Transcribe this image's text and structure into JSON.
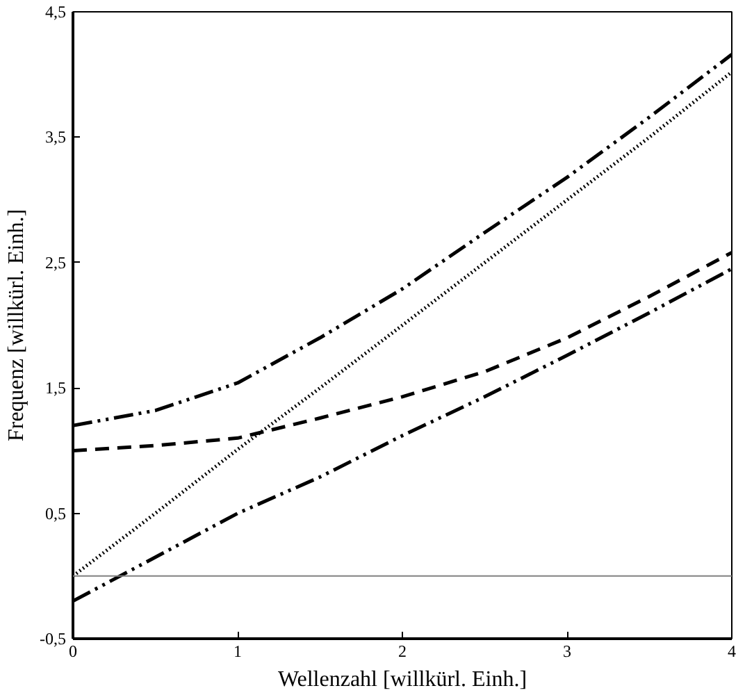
{
  "chart_data": {
    "type": "line",
    "xlabel": "Wellenzahl [willkürl. Einh.]",
    "ylabel": "Frequenz [willkürl. Einh.]",
    "x": [
      0,
      0.5,
      1,
      1.5,
      2,
      2.5,
      3,
      3.5,
      4
    ],
    "series": [
      {
        "color": "#000000",
        "line_style": "dashdot",
        "values": [
          1.2,
          1.32,
          1.54,
          1.9,
          2.29,
          2.74,
          3.18,
          3.66,
          4.16
        ]
      },
      {
        "color": "#000000",
        "line_style": "dotted",
        "values": [
          0,
          0.5,
          1.01,
          1.5,
          2,
          2.5,
          3,
          3.5,
          4.02
        ]
      },
      {
        "color": "#000000",
        "line_style": "dashed",
        "values": [
          1.0,
          1.04,
          1.1,
          1.26,
          1.43,
          1.63,
          1.9,
          2.23,
          2.58
        ]
      },
      {
        "color": "#000000",
        "line_style": "dashdot",
        "values": [
          -0.2,
          0.15,
          0.5,
          0.79,
          1.12,
          1.43,
          1.76,
          2.1,
          2.45
        ]
      }
    ],
    "xlim": [
      0,
      4
    ],
    "ylim": [
      -0.5,
      4.5
    ],
    "xticks": [
      0,
      1,
      2,
      3,
      4
    ],
    "yticks": [
      {
        "value": -0.5,
        "label": "-0,5"
      },
      {
        "value": 0.5,
        "label": "0,5"
      },
      {
        "value": 1.5,
        "label": "1,5"
      },
      {
        "value": 2.5,
        "label": "2,5"
      },
      {
        "value": 3.5,
        "label": "3,5"
      },
      {
        "value": 4.5,
        "label": "4,5"
      }
    ],
    "ref_lines": [
      {
        "axis": "y",
        "value": 0,
        "color": "#808080"
      }
    ],
    "grid": false
  }
}
